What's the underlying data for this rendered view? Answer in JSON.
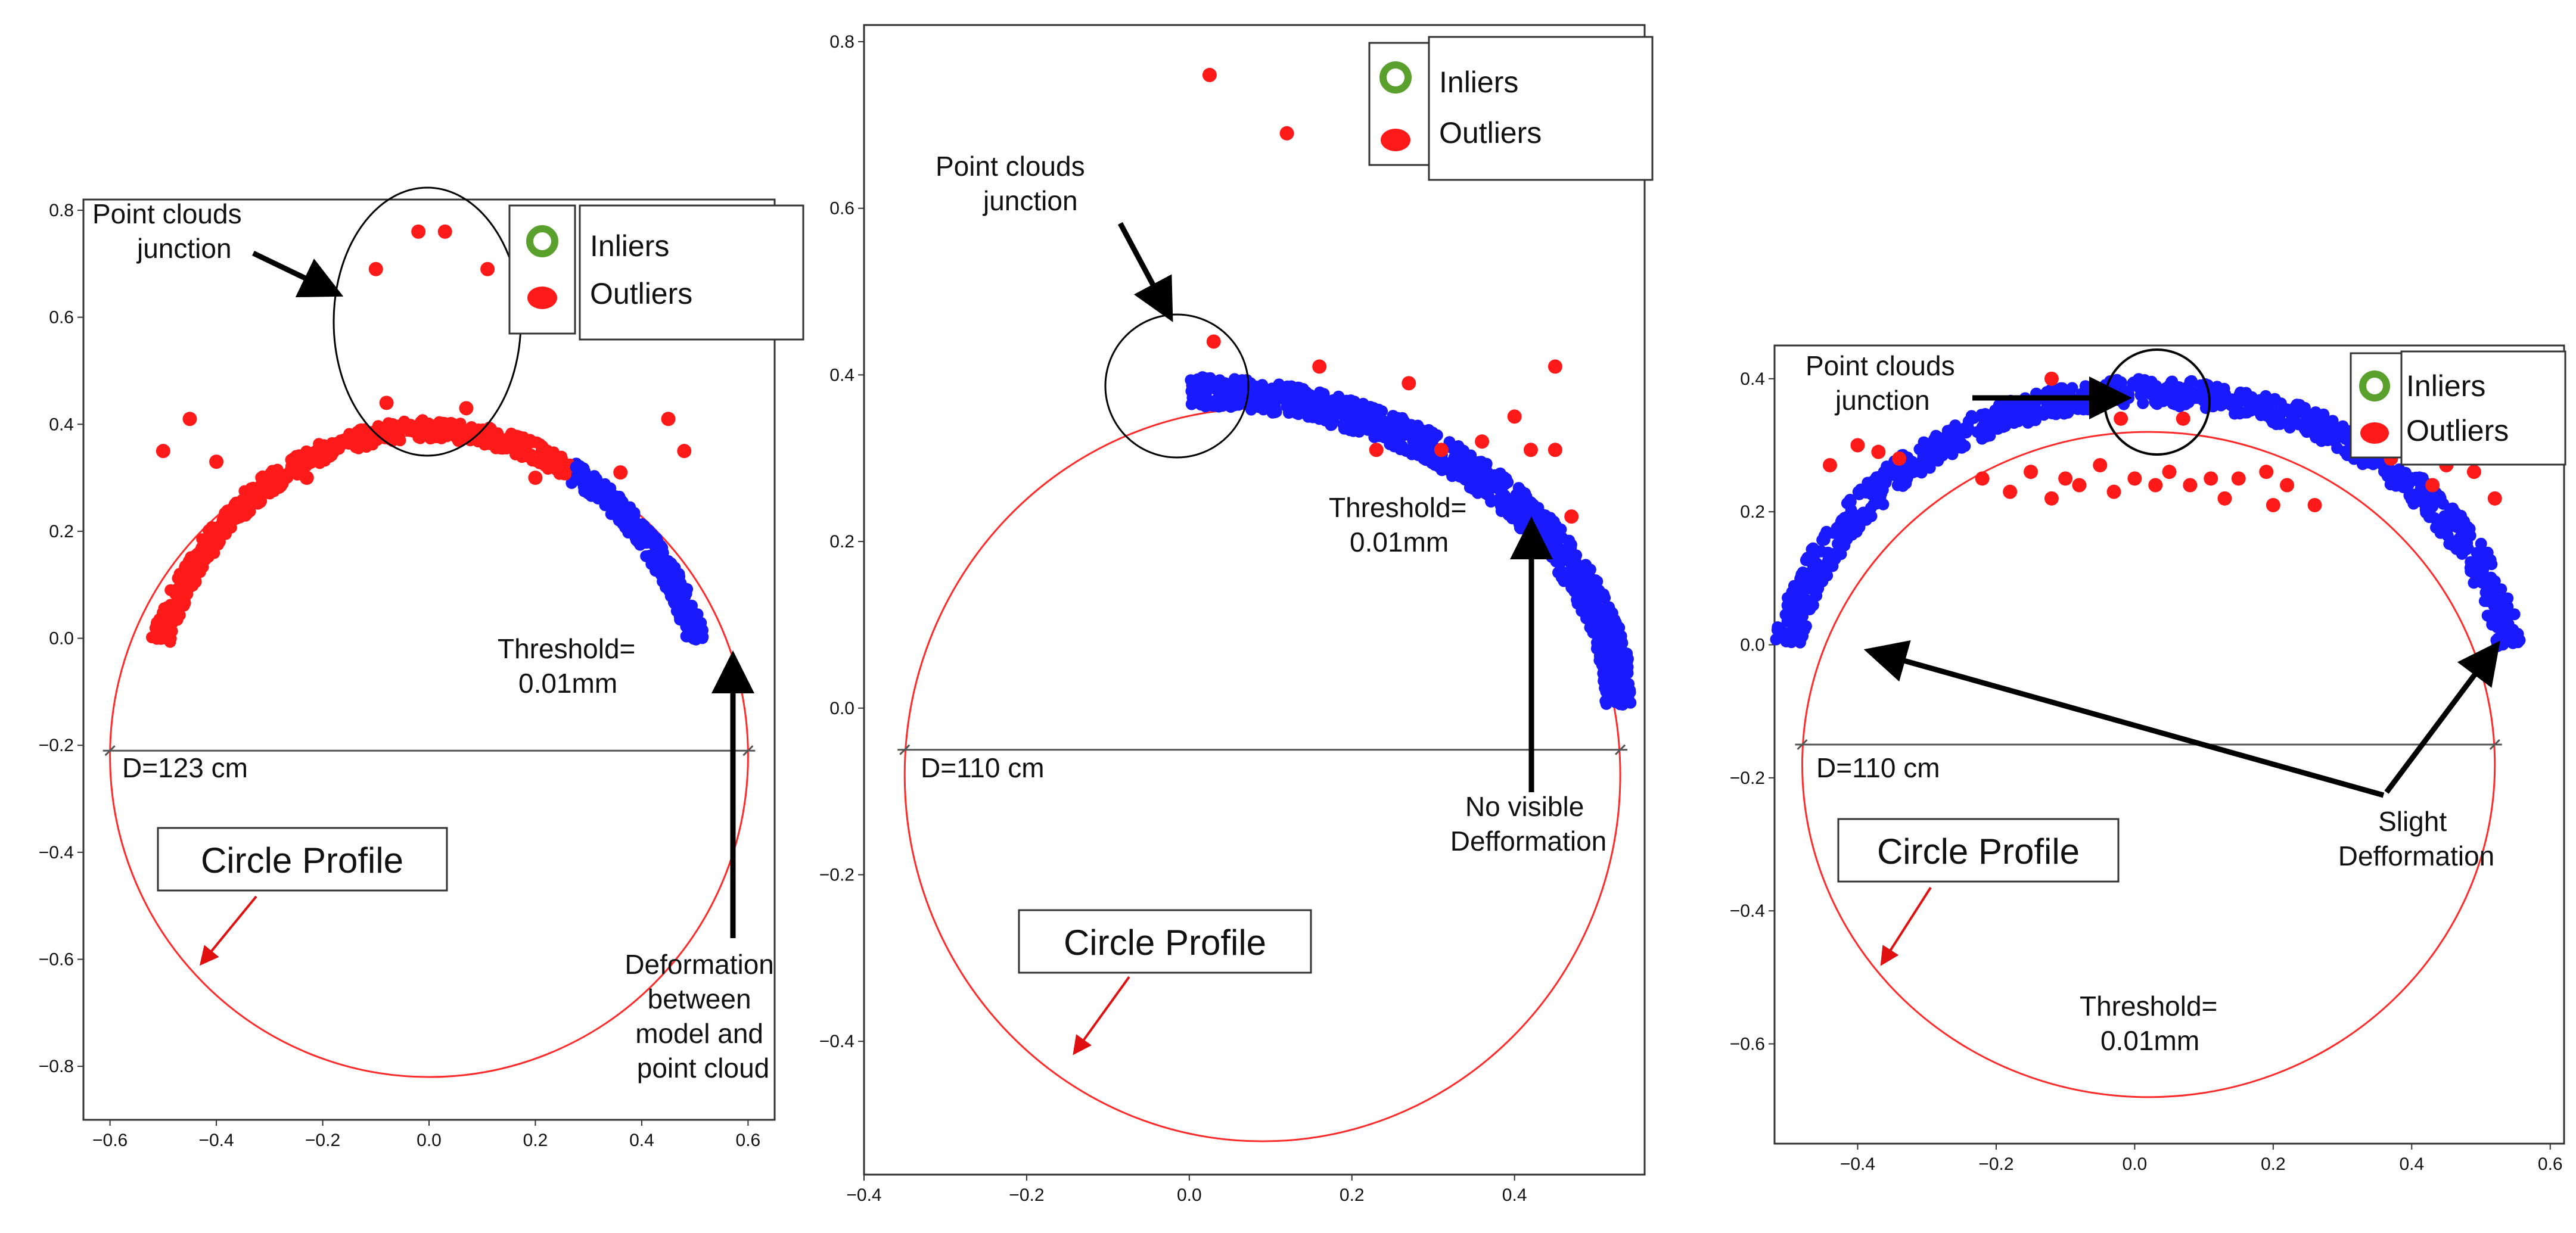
{
  "colors": {
    "outlier": "#ff1a1a",
    "inlier_fill": "#1a1aff",
    "inlier_legend": "#5aa02c",
    "circle": "#ff2a2a",
    "axis": "#333333",
    "annotation": "#000000"
  },
  "chart_data": [
    {
      "type": "scatter",
      "panel": "left",
      "xlim": [
        -0.65,
        0.65
      ],
      "ylim": [
        -0.9,
        0.82
      ],
      "xticks": [
        -0.6,
        -0.4,
        -0.2,
        0.0,
        0.2,
        0.4,
        0.6
      ],
      "yticks": [
        -0.8,
        -0.6,
        -0.4,
        -0.2,
        0.0,
        0.2,
        0.4,
        0.6,
        0.8
      ],
      "xtick_labels": [
        "−0.6",
        "−0.4",
        "−0.2",
        "0.0",
        "0.2",
        "0.4",
        "0.6"
      ],
      "ytick_labels": [
        "−0.8",
        "−0.6",
        "−0.4",
        "−0.2",
        "0.0",
        "0.2",
        "0.4",
        "0.6",
        "0.8"
      ],
      "legend": [
        "Inliers",
        "Outliers"
      ],
      "circle": {
        "cx": 0.0,
        "cy": -0.22,
        "r": 0.6
      },
      "diameter_line_y": -0.21,
      "diameter_label": "D=123 cm",
      "arc": {
        "cx": 0.0,
        "cy": -0.18,
        "rx": 0.53,
        "ry": 0.57,
        "from_deg": 18,
        "to_deg": 162,
        "inlier_from_deg": 18,
        "inlier_to_deg": 60,
        "spread": 0.018
      },
      "outlier_points": [
        [
          -0.1,
          0.69
        ],
        [
          -0.02,
          0.76
        ],
        [
          0.03,
          0.76
        ],
        [
          0.11,
          0.69
        ],
        [
          -0.08,
          0.44
        ],
        [
          0.07,
          0.43
        ],
        [
          -0.45,
          0.41
        ],
        [
          0.45,
          0.41
        ],
        [
          -0.5,
          0.35
        ],
        [
          0.48,
          0.35
        ],
        [
          -0.4,
          0.33
        ],
        [
          0.36,
          0.31
        ],
        [
          -0.23,
          0.3
        ],
        [
          0.2,
          0.3
        ]
      ],
      "annotations": {
        "junction": "Point clouds\njunction",
        "threshold": "Threshold=\n0.01mm",
        "deformation": "Deformation\nbetween\nmodel and\npoint cloud",
        "circle_profile": "Circle Profile"
      }
    },
    {
      "type": "scatter",
      "panel": "middle",
      "xlim": [
        -0.4,
        0.56
      ],
      "ylim": [
        -0.56,
        0.82
      ],
      "xticks": [
        -0.4,
        -0.2,
        0.0,
        0.2,
        0.4
      ],
      "yticks": [
        -0.4,
        -0.2,
        0.0,
        0.2,
        0.4,
        0.6,
        0.8
      ],
      "xtick_labels": [
        "−0.4",
        "−0.2",
        "0.0",
        "0.2",
        "0.4"
      ],
      "ytick_labels": [
        "−0.4",
        "−0.2",
        "0.0",
        "0.2",
        "0.4",
        "0.6",
        "0.8"
      ],
      "legend": [
        "Inliers",
        "Outliers"
      ],
      "circle": {
        "cx": 0.09,
        "cy": -0.08,
        "r": 0.44
      },
      "diameter_line_y": -0.05,
      "diameter_label": "D=110 cm",
      "arc": {
        "cx": 0.0,
        "cy": -0.01,
        "rx": 0.53,
        "ry": 0.39,
        "from_deg": 2,
        "to_deg": 90,
        "inlier_from_deg": 2,
        "inlier_to_deg": 90,
        "spread": 0.018
      },
      "outlier_points": [
        [
          0.025,
          0.76
        ],
        [
          0.12,
          0.69
        ],
        [
          0.03,
          0.44
        ],
        [
          0.16,
          0.41
        ],
        [
          0.27,
          0.39
        ],
        [
          0.45,
          0.41
        ],
        [
          0.23,
          0.31
        ],
        [
          0.31,
          0.31
        ],
        [
          0.4,
          0.35
        ],
        [
          0.42,
          0.31
        ],
        [
          0.45,
          0.31
        ],
        [
          0.36,
          0.32
        ],
        [
          0.47,
          0.23
        ]
      ],
      "annotations": {
        "junction": "Point clouds\njunction",
        "threshold": "Threshold=\n0.01mm",
        "no_deformation": "No visible\nDefformation",
        "circle_profile": "Circle Profile"
      }
    },
    {
      "type": "scatter",
      "panel": "right",
      "xlim": [
        -0.52,
        0.62
      ],
      "ylim": [
        -0.75,
        0.45
      ],
      "xticks": [
        -0.4,
        -0.2,
        0.0,
        0.2,
        0.4,
        0.6
      ],
      "yticks": [
        -0.6,
        -0.4,
        -0.2,
        0.0,
        0.2,
        0.4
      ],
      "xtick_labels": [
        "−0.4",
        "−0.2",
        "0.0",
        "0.2",
        "0.4",
        "0.6"
      ],
      "ytick_labels": [
        "−0.6",
        "−0.4",
        "−0.2",
        "0.0",
        "0.2",
        "0.4"
      ],
      "legend": [
        "Inliers",
        "Outliers"
      ],
      "circle": {
        "cx": 0.02,
        "cy": -0.18,
        "r": 0.5
      },
      "diameter_line_y": -0.15,
      "diameter_label": "D=110 cm",
      "arc": {
        "cx": 0.02,
        "cy": -0.08,
        "rx": 0.53,
        "ry": 0.46,
        "from_deg": 10,
        "to_deg": 170,
        "inlier_from_deg": 10,
        "inlier_to_deg": 170,
        "spread": 0.02
      },
      "outlier_points": [
        [
          -0.4,
          0.3
        ],
        [
          -0.37,
          0.29
        ],
        [
          -0.44,
          0.27
        ],
        [
          -0.34,
          0.28
        ],
        [
          -0.22,
          0.25
        ],
        [
          -0.18,
          0.23
        ],
        [
          -0.15,
          0.26
        ],
        [
          -0.12,
          0.22
        ],
        [
          -0.1,
          0.25
        ],
        [
          -0.08,
          0.24
        ],
        [
          -0.05,
          0.27
        ],
        [
          -0.03,
          0.23
        ],
        [
          0.0,
          0.25
        ],
        [
          0.03,
          0.24
        ],
        [
          0.05,
          0.26
        ],
        [
          0.08,
          0.24
        ],
        [
          0.11,
          0.25
        ],
        [
          0.13,
          0.22
        ],
        [
          0.15,
          0.25
        ],
        [
          0.2,
          0.21
        ],
        [
          0.22,
          0.24
        ],
        [
          0.26,
          0.21
        ],
        [
          0.19,
          0.26
        ],
        [
          0.37,
          0.28
        ],
        [
          0.45,
          0.27
        ],
        [
          0.49,
          0.26
        ],
        [
          0.43,
          0.24
        ],
        [
          0.52,
          0.22
        ],
        [
          -0.12,
          0.4
        ],
        [
          0.07,
          0.34
        ],
        [
          -0.02,
          0.34
        ]
      ],
      "annotations": {
        "junction": "Point clouds\njunction",
        "threshold": "Threshold=\n0.01mm",
        "slight_deformation": "Slight\nDefformation",
        "circle_profile": "Circle Profile"
      }
    }
  ]
}
